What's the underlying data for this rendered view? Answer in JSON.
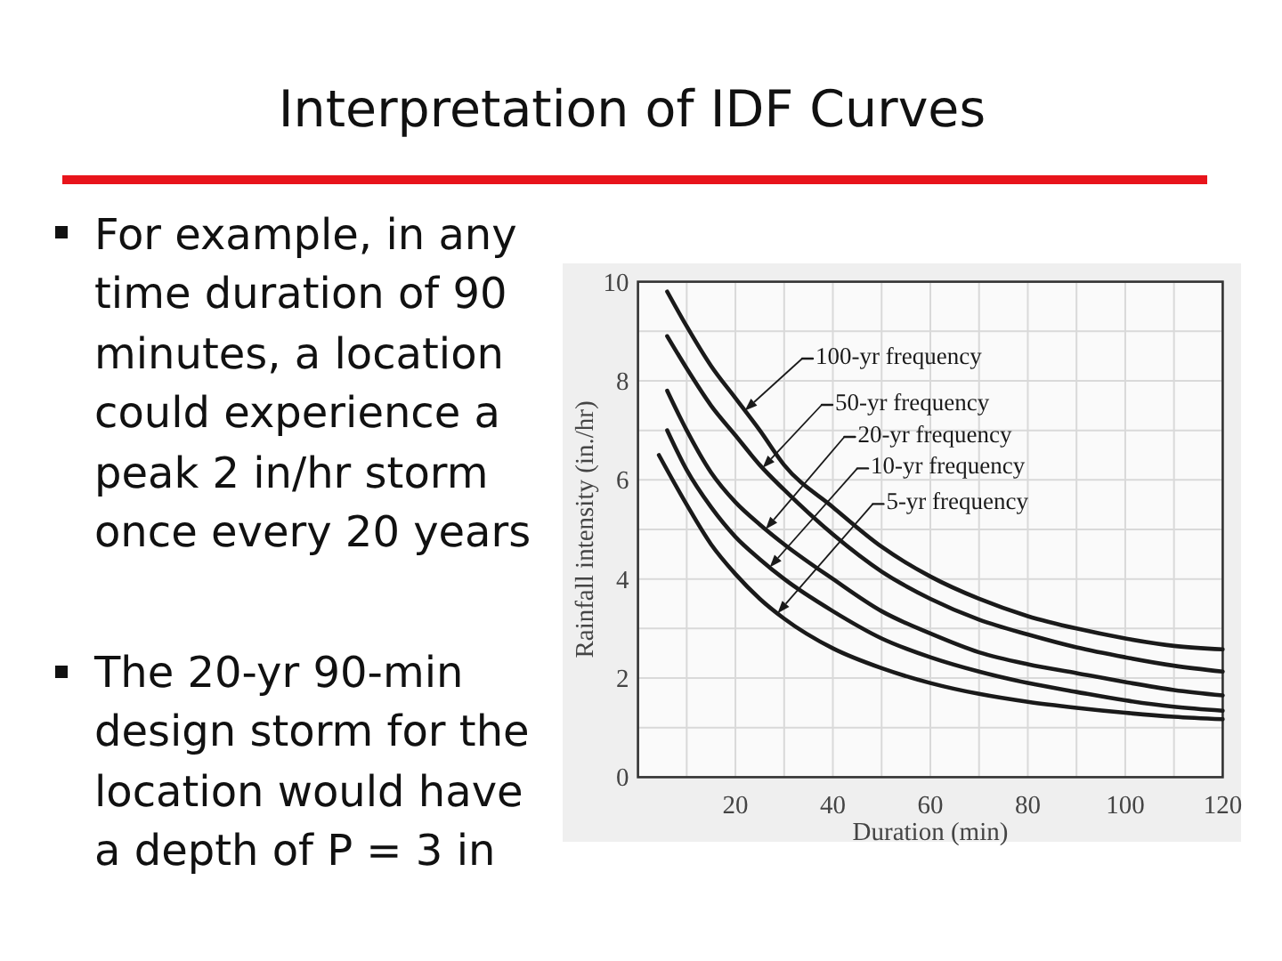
{
  "chart_data": {
    "type": "line",
    "title": "Interpretation of IDF Curves",
    "xlabel": "Duration (min)",
    "ylabel": "Rainfall intensity (in./hr)",
    "annotations": [
      "For example, in any time duration of 90 minutes, a location could experience a peak 2 in/hr storm once every 20 years",
      "The 20-yr 90-min design storm for the location would have a depth of P = 3 in"
    ],
    "xlim": [
      0,
      120
    ],
    "xticks": [
      {
        "value": 10,
        "label": null
      },
      20,
      {
        "value": 30,
        "label": null
      },
      40,
      {
        "value": 50,
        "label": null
      },
      60,
      {
        "value": 70,
        "label": null
      },
      80,
      {
        "value": 90,
        "label": null
      },
      100,
      {
        "value": 110,
        "label": null
      },
      120
    ],
    "ylim": [
      0,
      10
    ],
    "yticks": [
      0,
      {
        "value": 1,
        "label": null
      },
      2,
      {
        "value": 3,
        "label": null
      },
      4,
      {
        "value": 5,
        "label": null
      },
      6,
      {
        "value": 7,
        "label": null
      },
      8,
      {
        "value": 9,
        "label": null
      },
      10
    ],
    "grid": true,
    "legend": "top",
    "series": [
      {
        "name": "100-yr frequency",
        "color": "#1a1a1a",
        "x": [
          6,
          10,
          15,
          20,
          25,
          30,
          40,
          50,
          60,
          70,
          80,
          90,
          100,
          110,
          120
        ],
        "values": [
          9.8,
          9.1,
          8.3,
          7.65,
          7.0,
          6.3,
          5.45,
          4.65,
          4.05,
          3.6,
          3.25,
          3.0,
          2.8,
          2.65,
          2.58
        ]
      },
      {
        "name": "50-yr frequency",
        "color": "#1a1a1a",
        "x": [
          6,
          10,
          15,
          20,
          25,
          30,
          40,
          50,
          60,
          70,
          80,
          90,
          100,
          110,
          120
        ],
        "values": [
          8.9,
          8.25,
          7.5,
          6.9,
          6.3,
          5.8,
          4.9,
          4.15,
          3.6,
          3.18,
          2.88,
          2.62,
          2.42,
          2.25,
          2.13
        ]
      },
      {
        "name": "20-yr frequency",
        "color": "#1a1a1a",
        "x": [
          6,
          10,
          15,
          20,
          25,
          30,
          40,
          50,
          60,
          70,
          80,
          90,
          100,
          110,
          120
        ],
        "values": [
          7.8,
          7.0,
          6.15,
          5.55,
          5.1,
          4.7,
          4.0,
          3.35,
          2.9,
          2.52,
          2.28,
          2.1,
          1.92,
          1.76,
          1.65
        ]
      },
      {
        "name": "10-yr frequency",
        "color": "#1a1a1a",
        "x": [
          6,
          10,
          15,
          20,
          25,
          30,
          40,
          50,
          60,
          70,
          80,
          90,
          100,
          110,
          120
        ],
        "values": [
          7.0,
          6.2,
          5.45,
          4.85,
          4.4,
          4.0,
          3.35,
          2.8,
          2.42,
          2.13,
          1.9,
          1.72,
          1.55,
          1.42,
          1.34
        ]
      },
      {
        "name": "5-yr frequency",
        "color": "#1a1a1a",
        "x": [
          4.3,
          10,
          15,
          20,
          25,
          30,
          40,
          50,
          60,
          70,
          80,
          90,
          100,
          110,
          120
        ],
        "values": [
          6.5,
          5.5,
          4.7,
          4.1,
          3.6,
          3.2,
          2.6,
          2.2,
          1.9,
          1.68,
          1.52,
          1.4,
          1.3,
          1.22,
          1.17
        ]
      }
    ]
  }
}
